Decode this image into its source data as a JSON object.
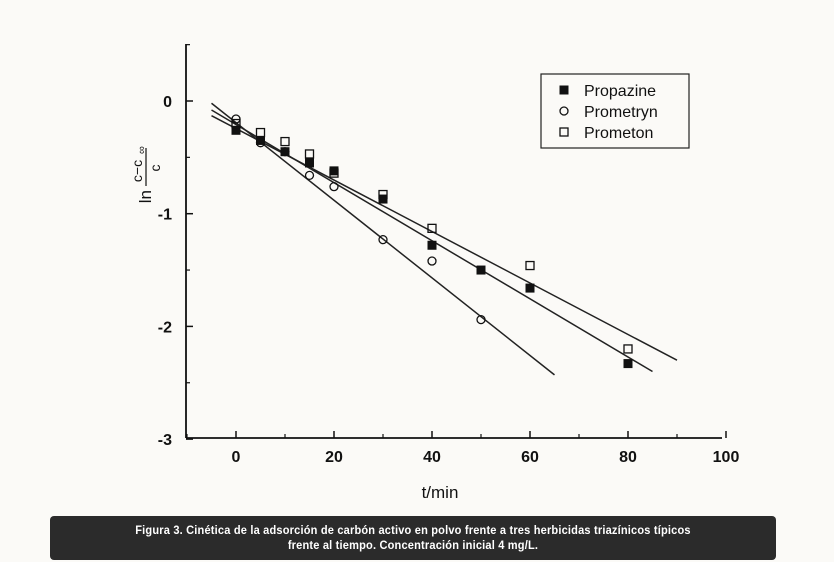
{
  "chart_data": {
    "type": "scatter",
    "title": "",
    "xlabel": "t/min",
    "ylabel_main": "ln",
    "ylabel_num": "c−c",
    "ylabel_num_sub": "∞",
    "ylabel_den": "c",
    "xlim": [
      -10,
      100
    ],
    "ylim": [
      -3,
      0.5
    ],
    "xticks": [
      0,
      20,
      40,
      60,
      80,
      100
    ],
    "yticks": [
      0,
      -1,
      -2,
      -3
    ],
    "xtick_labels": [
      "0",
      "20",
      "40",
      "60",
      "80",
      "100"
    ],
    "ytick_labels": [
      "0",
      "-1",
      "-2",
      "-3"
    ],
    "legend_position": "top-right",
    "series": [
      {
        "name": "Propazine",
        "marker": "filled-square",
        "x": [
          0,
          5,
          10,
          15,
          20,
          30,
          40,
          50,
          60,
          80
        ],
        "y": [
          -0.26,
          -0.35,
          -0.45,
          -0.55,
          -0.62,
          -0.87,
          -1.28,
          -1.5,
          -1.66,
          -2.33
        ],
        "fit": {
          "x": [
            -5,
            85
          ],
          "y": [
            -0.08,
            -2.4
          ]
        }
      },
      {
        "name": "Prometryn",
        "marker": "open-circle",
        "x": [
          0,
          5,
          10,
          15,
          20,
          30,
          40,
          50
        ],
        "y": [
          -0.16,
          -0.37,
          -0.45,
          -0.66,
          -0.76,
          -1.23,
          -1.42,
          -1.94
        ],
        "fit": {
          "x": [
            -5,
            65
          ],
          "y": [
            -0.02,
            -2.43
          ]
        }
      },
      {
        "name": "Prometon",
        "marker": "open-square",
        "x": [
          0,
          5,
          10,
          15,
          20,
          30,
          40,
          60,
          80
        ],
        "y": [
          -0.2,
          -0.28,
          -0.36,
          -0.47,
          -0.64,
          -0.83,
          -1.13,
          -1.46,
          -2.2
        ],
        "fit": {
          "x": [
            -5,
            90
          ],
          "y": [
            -0.13,
            -2.3
          ]
        }
      }
    ]
  },
  "caption": {
    "line1": "Figura 3. Cinética de la adsorción de carbón activo en polvo frente a tres herbicidas triazínicos típicos",
    "line2": "frente al tiempo. Concentración inicial 4 mg/L."
  }
}
